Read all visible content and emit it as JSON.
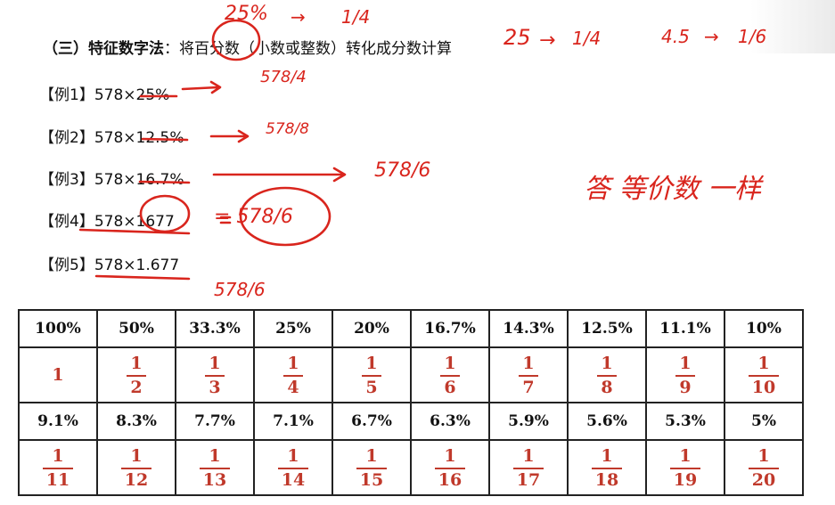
{
  "heading": {
    "label": "（三）特征数字法",
    "text": "：将百分数（小数或整数）转化成分数计算"
  },
  "examples": [
    {
      "label": "【例1】",
      "expr": "578×25%"
    },
    {
      "label": "【例2】",
      "expr": "578×12.5%"
    },
    {
      "label": "【例3】",
      "expr": "578×16.7%"
    },
    {
      "label": "【例4】",
      "expr": "578×1677"
    },
    {
      "label": "【例5】",
      "expr": "578×1.677"
    }
  ],
  "annotations": {
    "top": [
      "25%",
      "→",
      "1/4",
      "25",
      "→",
      "1/4",
      "4.5",
      "→",
      "1/6"
    ],
    "ex1": "578/4",
    "ex2": "578/8",
    "ex3": "578/6",
    "ex4": "= 578/6",
    "ex5": "578/6",
    "right_note": "答 等价数 一样"
  },
  "table": {
    "row1_pct": [
      "100%",
      "50%",
      "33.3%",
      "25%",
      "20%",
      "16.7%",
      "14.3%",
      "12.5%",
      "11.1%",
      "10%"
    ],
    "row1_frac": [
      {
        "whole": "1"
      },
      {
        "num": "1",
        "den": "2"
      },
      {
        "num": "1",
        "den": "3"
      },
      {
        "num": "1",
        "den": "4"
      },
      {
        "num": "1",
        "den": "5"
      },
      {
        "num": "1",
        "den": "6"
      },
      {
        "num": "1",
        "den": "7"
      },
      {
        "num": "1",
        "den": "8"
      },
      {
        "num": "1",
        "den": "9"
      },
      {
        "num": "1",
        "den": "10"
      }
    ],
    "row2_pct": [
      "9.1%",
      "8.3%",
      "7.7%",
      "7.1%",
      "6.7%",
      "6.3%",
      "5.9%",
      "5.6%",
      "5.3%",
      "5%"
    ],
    "row2_frac": [
      {
        "num": "1",
        "den": "11"
      },
      {
        "num": "1",
        "den": "12"
      },
      {
        "num": "1",
        "den": "13"
      },
      {
        "num": "1",
        "den": "14"
      },
      {
        "num": "1",
        "den": "15"
      },
      {
        "num": "1",
        "den": "16"
      },
      {
        "num": "1",
        "den": "17"
      },
      {
        "num": "1",
        "den": "18"
      },
      {
        "num": "1",
        "den": "19"
      },
      {
        "num": "1",
        "den": "20"
      }
    ]
  },
  "colors": {
    "ink": "#d9251d",
    "fraction": "#c0392b"
  }
}
